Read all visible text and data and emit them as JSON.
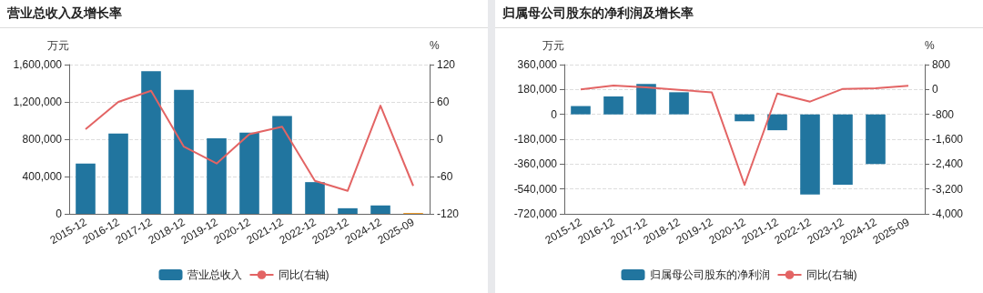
{
  "chart_data": [
    {
      "type": "bar",
      "title": "营业总收入及增长率",
      "ylabel": "万元",
      "y2label": "%",
      "categories": [
        "2015-12",
        "2016-12",
        "2017-12",
        "2018-12",
        "2019-12",
        "2020-12",
        "2021-12",
        "2022-12",
        "2023-12",
        "2024-12",
        "2025-09"
      ],
      "series": [
        {
          "name": "营业总收入",
          "color": "#21759f",
          "colors": [
            "#21759f",
            "#21759f",
            "#21759f",
            "#21759f",
            "#21759f",
            "#21759f",
            "#21759f",
            "#21759f",
            "#21759f",
            "#21759f",
            "#f0a030"
          ],
          "values": [
            540000,
            860000,
            1530000,
            1330000,
            810000,
            870000,
            1050000,
            340000,
            60000,
            90000,
            10000
          ]
        },
        {
          "name": "同比(右轴)",
          "type": "line",
          "axis": "y2",
          "color": "#e36464",
          "values": [
            16,
            60,
            78,
            -12,
            -39,
            8,
            20,
            -67,
            -83,
            54,
            -75
          ]
        }
      ],
      "ylim": [
        0,
        1600000
      ],
      "yticks": [
        0,
        {
          "value": 400000,
          "label": "400,000"
        },
        {
          "value": 800000,
          "label": "800,000"
        },
        {
          "value": 1200000,
          "label": "1,200,000"
        },
        {
          "value": 1600000,
          "label": "1,600,000"
        }
      ],
      "y2lim": [
        -120,
        120
      ],
      "y2ticks": [
        -120,
        -60,
        0,
        60,
        120
      ],
      "grid": "y",
      "legend": "bottom",
      "marker": "none"
    },
    {
      "type": "bar",
      "title": "归属母公司股东的净利润及增长率",
      "ylabel": "万元",
      "y2label": "%",
      "categories": [
        "2015-12",
        "2016-12",
        "2017-12",
        "2018-12",
        "2019-12",
        "2020-12",
        "2021-12",
        "2022-12",
        "2023-12",
        "2024-12",
        "2025-09"
      ],
      "series": [
        {
          "name": "归属母公司股东的净利润",
          "color": "#21759f",
          "values": [
            60000,
            130000,
            220000,
            160000,
            0,
            -50000,
            -115000,
            -580000,
            -510000,
            -360000,
            null
          ]
        },
        {
          "name": "同比(右轴)",
          "type": "line",
          "axis": "y2",
          "color": "#e36464",
          "values": [
            0,
            130,
            70,
            -10,
            -90,
            -3070,
            -130,
            -390,
            20,
            40,
            120
          ]
        }
      ],
      "ylim": [
        -720000,
        360000
      ],
      "yticks": [
        {
          "value": -720000,
          "label": "-720,000"
        },
        {
          "value": -540000,
          "label": "-540,000"
        },
        {
          "value": -360000,
          "label": "-360,000"
        },
        {
          "value": -180000,
          "label": "-180,000"
        },
        0,
        {
          "value": 180000,
          "label": "180,000"
        },
        {
          "value": 360000,
          "label": "360,000"
        }
      ],
      "y2lim": [
        -4000,
        800
      ],
      "y2ticks": [
        {
          "value": -4000,
          "label": "-4,000"
        },
        {
          "value": -3200,
          "label": "-3,200"
        },
        {
          "value": -2400,
          "label": "-2,400"
        },
        {
          "value": -1600,
          "label": "-1,600"
        },
        -800,
        0,
        800
      ],
      "grid": "y",
      "legend": "bottom",
      "marker": "none"
    }
  ]
}
